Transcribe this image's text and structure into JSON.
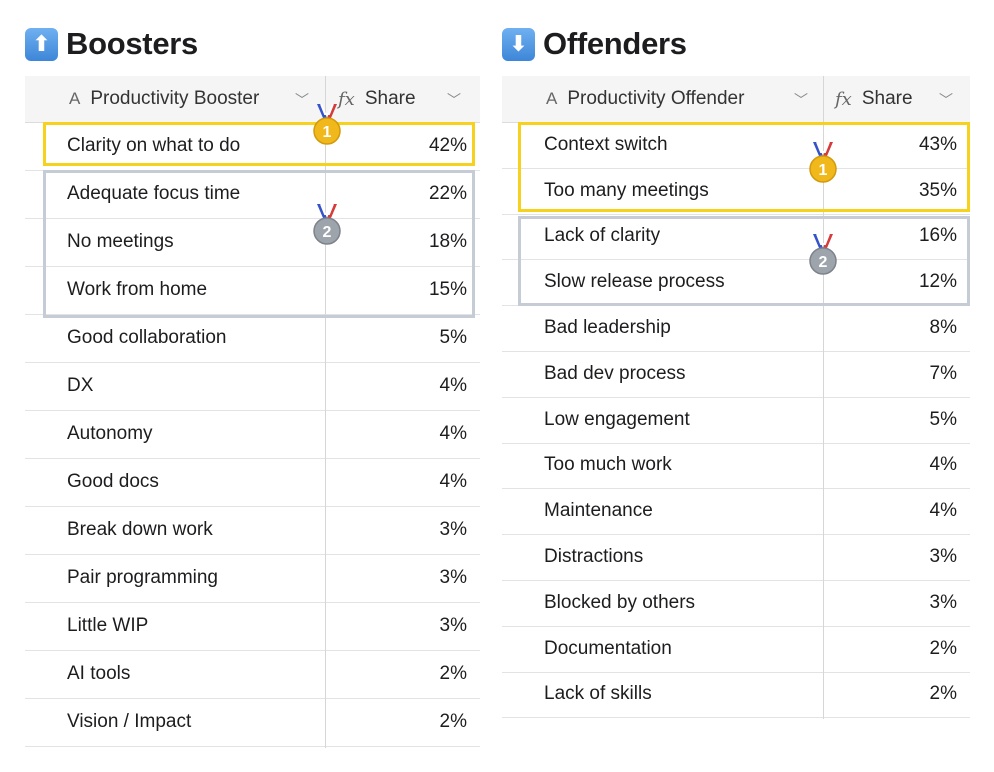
{
  "boosters": {
    "title": "Boosters",
    "icon": "up-arrow-icon",
    "col_name": "Productivity Booster",
    "col_share": "Share",
    "rows": [
      {
        "name": "Clarity on what to do",
        "share": "42%"
      },
      {
        "name": "Adequate focus time",
        "share": "22%"
      },
      {
        "name": "No meetings",
        "share": "18%"
      },
      {
        "name": "Work from home",
        "share": "15%"
      },
      {
        "name": "Good collaboration",
        "share": "5%"
      },
      {
        "name": "DX",
        "share": "4%"
      },
      {
        "name": "Autonomy",
        "share": "4%"
      },
      {
        "name": "Good docs",
        "share": "4%"
      },
      {
        "name": "Break down work",
        "share": "3%"
      },
      {
        "name": "Pair programming",
        "share": "3%"
      },
      {
        "name": "Little WIP",
        "share": "3%"
      },
      {
        "name": "AI tools",
        "share": "2%"
      },
      {
        "name": "Vision / Impact",
        "share": "2%"
      }
    ],
    "medals": {
      "first": "1",
      "second": "2"
    }
  },
  "offenders": {
    "title": "Offenders",
    "icon": "down-arrow-icon",
    "col_name": "Productivity Offender",
    "col_share": "Share",
    "rows": [
      {
        "name": "Context switch",
        "share": "43%"
      },
      {
        "name": "Too many meetings",
        "share": "35%"
      },
      {
        "name": "Lack of clarity",
        "share": "16%"
      },
      {
        "name": "Slow release process",
        "share": "12%"
      },
      {
        "name": "Bad leadership",
        "share": "8%"
      },
      {
        "name": "Bad dev process",
        "share": "7%"
      },
      {
        "name": "Low engagement",
        "share": "5%"
      },
      {
        "name": "Too much work",
        "share": "4%"
      },
      {
        "name": "Maintenance",
        "share": "4%"
      },
      {
        "name": "Distractions",
        "share": "3%"
      },
      {
        "name": "Blocked by others",
        "share": "3%"
      },
      {
        "name": "Documentation",
        "share": "2%"
      },
      {
        "name": "Lack of skills",
        "share": "2%"
      }
    ],
    "medals": {
      "first": "1",
      "second": "2"
    }
  },
  "colors": {
    "gold": "#f6d21e",
    "silver": "#c5ccd5",
    "header_bg": "#f5f5f5"
  }
}
